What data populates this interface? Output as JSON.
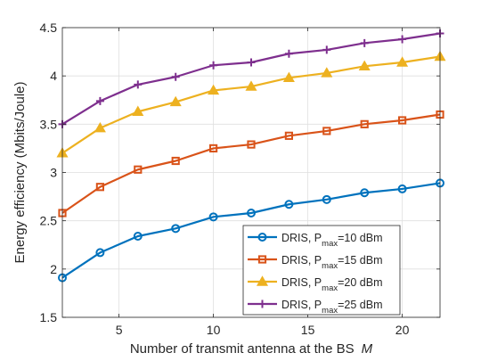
{
  "chart_data": {
    "type": "line",
    "title": "",
    "xlabel": "Number of transmit antenna at the BS",
    "xlabel_var": "M",
    "ylabel": "Energy efficiency (Mbits/Joule)",
    "xlim": [
      2,
      22
    ],
    "ylim": [
      1.5,
      4.5
    ],
    "xticks": [
      5,
      10,
      15,
      20
    ],
    "yticks": [
      1.5,
      2,
      2.5,
      3,
      3.5,
      4,
      4.5
    ],
    "ytick_labels": [
      "1.5",
      "2",
      "2.5",
      "3",
      "3.5",
      "4",
      "4.5"
    ],
    "grid": true,
    "legend_position": "bottom-right",
    "x": [
      2,
      4,
      6,
      8,
      10,
      12,
      14,
      16,
      18,
      20,
      22
    ],
    "series": [
      {
        "name": "DRIS, P",
        "name_sub": "max",
        "name_suffix": "=10 dBm",
        "color": "#0072BD",
        "marker": "circle",
        "values": [
          1.91,
          2.17,
          2.34,
          2.42,
          2.54,
          2.58,
          2.67,
          2.72,
          2.79,
          2.83,
          2.89
        ]
      },
      {
        "name": "DRIS, P",
        "name_sub": "max",
        "name_suffix": "=15 dBm",
        "color": "#D95319",
        "marker": "square",
        "values": [
          2.58,
          2.85,
          3.03,
          3.12,
          3.25,
          3.29,
          3.38,
          3.43,
          3.5,
          3.54,
          3.6
        ]
      },
      {
        "name": "DRIS, P",
        "name_sub": "max",
        "name_suffix": "=20 dBm",
        "color": "#EDB120",
        "marker": "triangle",
        "values": [
          3.2,
          3.46,
          3.63,
          3.73,
          3.85,
          3.89,
          3.98,
          4.03,
          4.1,
          4.14,
          4.2
        ]
      },
      {
        "name": "DRIS, P",
        "name_sub": "max",
        "name_suffix": "=25 dBm",
        "color": "#7E2F8E",
        "marker": "plus",
        "values": [
          3.5,
          3.74,
          3.91,
          3.99,
          4.11,
          4.14,
          4.23,
          4.27,
          4.34,
          4.38,
          4.44
        ]
      }
    ]
  }
}
